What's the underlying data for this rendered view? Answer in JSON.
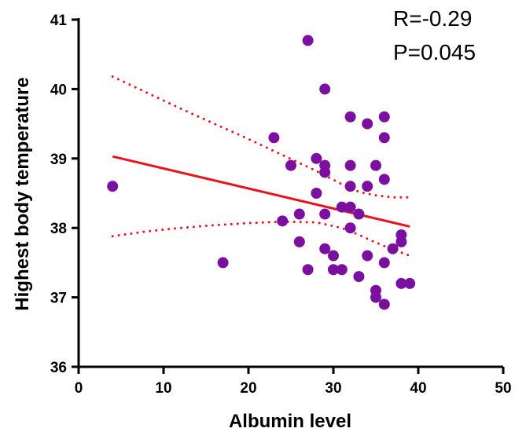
{
  "chart_data": {
    "type": "scatter",
    "xlabel": "Albumin level",
    "ylabel": "Highest body temperature",
    "xlim": [
      0,
      50
    ],
    "ylim": [
      36,
      41
    ],
    "x_ticks": [
      "0",
      "10",
      "20",
      "30",
      "40",
      "50"
    ],
    "y_ticks": [
      "36",
      "37",
      "38",
      "39",
      "40",
      "41"
    ],
    "grid": false,
    "annotations": {
      "r": "R=-0.29",
      "p": "P=0.045"
    },
    "colors": {
      "points": "#7B0FA0",
      "fit_line": "#E8141B",
      "axis": "#000000"
    },
    "points": [
      {
        "x": 4,
        "y": 38.6
      },
      {
        "x": 17,
        "y": 37.5
      },
      {
        "x": 23,
        "y": 39.3
      },
      {
        "x": 24,
        "y": 38.1
      },
      {
        "x": 25,
        "y": 38.9
      },
      {
        "x": 26,
        "y": 38.2
      },
      {
        "x": 26,
        "y": 37.8
      },
      {
        "x": 27,
        "y": 40.7
      },
      {
        "x": 27,
        "y": 37.4
      },
      {
        "x": 28,
        "y": 39.0
      },
      {
        "x": 28,
        "y": 38.5
      },
      {
        "x": 29,
        "y": 40.0
      },
      {
        "x": 29,
        "y": 38.9
      },
      {
        "x": 29,
        "y": 38.8
      },
      {
        "x": 29,
        "y": 38.2
      },
      {
        "x": 29,
        "y": 37.7
      },
      {
        "x": 30,
        "y": 37.6
      },
      {
        "x": 30,
        "y": 37.4
      },
      {
        "x": 31,
        "y": 38.3
      },
      {
        "x": 31,
        "y": 37.4
      },
      {
        "x": 32,
        "y": 39.6
      },
      {
        "x": 32,
        "y": 38.9
      },
      {
        "x": 32,
        "y": 38.6
      },
      {
        "x": 32,
        "y": 38.3
      },
      {
        "x": 32,
        "y": 38.0
      },
      {
        "x": 33,
        "y": 38.2
      },
      {
        "x": 33,
        "y": 37.3
      },
      {
        "x": 34,
        "y": 39.5
      },
      {
        "x": 34,
        "y": 38.6
      },
      {
        "x": 34,
        "y": 37.6
      },
      {
        "x": 35,
        "y": 38.9
      },
      {
        "x": 35,
        "y": 37.1
      },
      {
        "x": 35,
        "y": 37.0
      },
      {
        "x": 36,
        "y": 39.6
      },
      {
        "x": 36,
        "y": 39.3
      },
      {
        "x": 36,
        "y": 38.7
      },
      {
        "x": 36,
        "y": 37.5
      },
      {
        "x": 36,
        "y": 36.9
      },
      {
        "x": 37,
        "y": 37.7
      },
      {
        "x": 38,
        "y": 37.9
      },
      {
        "x": 38,
        "y": 37.8
      },
      {
        "x": 38,
        "y": 37.2
      },
      {
        "x": 39,
        "y": 37.2
      }
    ],
    "fit_line": [
      {
        "x": 4,
        "y": 39.03
      },
      {
        "x": 39,
        "y": 38.02
      }
    ],
    "ci_upper": [
      {
        "x": 4,
        "y": 40.18
      },
      {
        "x": 8,
        "y": 39.95
      },
      {
        "x": 12,
        "y": 39.72
      },
      {
        "x": 16,
        "y": 39.5
      },
      {
        "x": 20,
        "y": 39.28
      },
      {
        "x": 24,
        "y": 39.05
      },
      {
        "x": 28,
        "y": 38.82
      },
      {
        "x": 31,
        "y": 38.63
      },
      {
        "x": 33,
        "y": 38.52
      },
      {
        "x": 35,
        "y": 38.47
      },
      {
        "x": 37,
        "y": 38.44
      },
      {
        "x": 39,
        "y": 38.44
      }
    ],
    "ci_lower": [
      {
        "x": 4,
        "y": 37.88
      },
      {
        "x": 8,
        "y": 37.95
      },
      {
        "x": 12,
        "y": 38.0
      },
      {
        "x": 16,
        "y": 38.04
      },
      {
        "x": 20,
        "y": 38.07
      },
      {
        "x": 24,
        "y": 38.09
      },
      {
        "x": 28,
        "y": 38.08
      },
      {
        "x": 31,
        "y": 38.0
      },
      {
        "x": 33,
        "y": 37.9
      },
      {
        "x": 35,
        "y": 37.79
      },
      {
        "x": 37,
        "y": 37.69
      },
      {
        "x": 39,
        "y": 37.6
      }
    ]
  }
}
